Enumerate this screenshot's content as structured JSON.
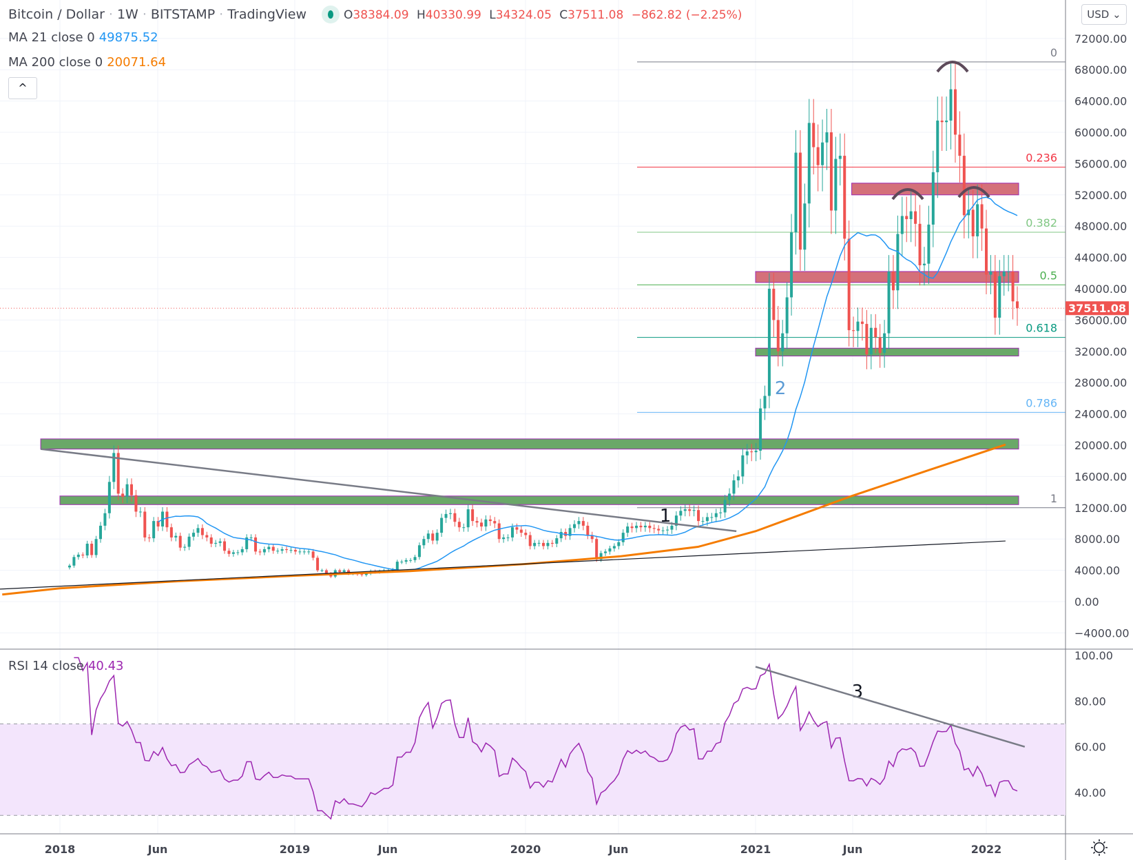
{
  "header": {
    "symbol": "Bitcoin / Dollar",
    "interval": "1W",
    "exchange": "BITSTAMP",
    "source": "TradingView",
    "sep": "·",
    "o_key": "O",
    "o": "38384.09",
    "h_key": "H",
    "h": "40330.99",
    "l_key": "L",
    "l": "34324.05",
    "c_key": "C",
    "c": "37511.08",
    "change": "−862.82 (−2.25%)"
  },
  "indicators": {
    "ma21_label": "MA 21 close 0",
    "ma21_value": "49875.52",
    "ma200_label": "MA 200 close 0",
    "ma200_value": "20071.64",
    "rsi_label": "RSI 14 close",
    "rsi_value": "40.43"
  },
  "controls": {
    "collapse": "^",
    "currency": "USD ⌄",
    "settings_icon": "sun-gear-icon"
  },
  "colors": {
    "up": "#26a69a",
    "down": "#ef5350",
    "ma21": "#2196f3",
    "ma200": "#f57c00",
    "rsi": "#9c27b0",
    "rsi_band": "#f3e5fc"
  },
  "chart_data": [
    {
      "type": "candlestick",
      "interval": "1W",
      "title": "Bitcoin / Dollar",
      "last_price": "37511.08",
      "ylim": [
        -4000,
        74000
      ],
      "y_ticks": [
        "72000.00",
        "68000.00",
        "64000.00",
        "60000.00",
        "56000.00",
        "52000.00",
        "48000.00",
        "44000.00",
        "40000.00",
        "36000.00",
        "32000.00",
        "28000.00",
        "24000.00",
        "20000.00",
        "16000.00",
        "12000.00",
        "8000.00",
        "4000.00",
        "0.00",
        "−4000.00"
      ],
      "x_ticks": [
        "2018",
        "Jun",
        "2019",
        "Jun",
        "2020",
        "Jun",
        "2021",
        "Jun",
        "2022"
      ],
      "weekly_close": [
        4600,
        5700,
        6000,
        5900,
        7400,
        5950,
        8000,
        9700,
        11300,
        15300,
        19000,
        13800,
        13400,
        15000,
        13600,
        11500,
        11500,
        8200,
        8100,
        10300,
        9600,
        11500,
        9500,
        8200,
        8400,
        6900,
        7000,
        8300,
        8800,
        9400,
        8500,
        8200,
        7400,
        7500,
        7700,
        6500,
        6100,
        6300,
        6300,
        6700,
        8200,
        8200,
        6400,
        6300,
        6700,
        7000,
        6500,
        6500,
        6700,
        6600,
        6600,
        6400,
        6400,
        6400,
        6400,
        5600,
        4000,
        4000,
        3600,
        3200,
        4000,
        3800,
        4000,
        3600,
        3600,
        3500,
        3400,
        3600,
        3900,
        3800,
        3900,
        4000,
        4000,
        4100,
        5100,
        5100,
        5300,
        5300,
        5700,
        7200,
        8000,
        8700,
        7800,
        8800,
        10700,
        11200,
        11300,
        10200,
        9500,
        9500,
        11800,
        10300,
        10100,
        9600,
        10500,
        10300,
        10000,
        8000,
        8200,
        8200,
        9500,
        9200,
        8800,
        8500,
        7100,
        7500,
        7500,
        7100,
        7500,
        7400,
        8100,
        8900,
        8400,
        9400,
        9900,
        10300,
        9700,
        8500,
        8000,
        5400,
        6200,
        6400,
        6800,
        7100,
        7600,
        8800,
        9600,
        9400,
        9700,
        9500,
        9700,
        9400,
        9300,
        9100,
        9100,
        9200,
        9700,
        11000,
        11600,
        11800,
        11600,
        11700,
        10300,
        10300,
        10800,
        10800,
        11300,
        11400,
        13000,
        13800,
        15500,
        16000,
        18700,
        19200,
        19100,
        19300,
        24700,
        26300,
        40000,
        36000,
        32000,
        34300,
        38900,
        47200,
        57400,
        45000,
        50900,
        61200,
        58100,
        55800,
        58700,
        60000,
        50000,
        56600,
        57000,
        46400,
        34700,
        34600,
        35800,
        35500,
        31600,
        35000,
        33800,
        31800,
        34300,
        42200,
        39800,
        47000,
        49300,
        48900,
        49900,
        48300,
        43000,
        43200,
        48200,
        54900,
        61500,
        61300,
        61500,
        65500,
        59700,
        57000,
        49400,
        50100,
        46700,
        50800,
        47700,
        41800,
        42200,
        36300,
        41600,
        42200,
        42200,
        38384,
        37511.08
      ],
      "ma200_approx": [
        [
          "2017-10",
          900
        ],
        [
          "2018-01",
          1700
        ],
        [
          "2018-07",
          2600
        ],
        [
          "2019-01",
          3300
        ],
        [
          "2019-07",
          3900
        ],
        [
          "2020-01",
          4800
        ],
        [
          "2020-06",
          5800
        ],
        [
          "2020-10",
          7000
        ],
        [
          "2021-01",
          9000
        ],
        [
          "2021-06",
          13500
        ],
        [
          "2021-10",
          16800
        ],
        [
          "2022-02",
          20071.64
        ]
      ],
      "fib_retracement": {
        "high": 69000,
        "low": 12000,
        "levels": [
          {
            "label": "0",
            "value": 0,
            "color": "#787b86"
          },
          {
            "label": "0.236",
            "value": 0.236,
            "color": "#f23645"
          },
          {
            "label": "0.382",
            "value": 0.382,
            "color": "#81c784"
          },
          {
            "label": "0.5",
            "value": 0.5,
            "color": "#4caf50"
          },
          {
            "label": "0.618",
            "value": 0.618,
            "color": "#089981"
          },
          {
            "label": "0.786",
            "value": 0.786,
            "color": "#64b5f6"
          },
          {
            "label": "1",
            "value": 1,
            "color": "#787b86"
          }
        ]
      },
      "zones": [
        {
          "kind": "resistance",
          "from": "2021-06",
          "to": "2022-02",
          "low": 52000,
          "high": 53500,
          "color": "#d4707a"
        },
        {
          "kind": "resistance",
          "from": "2021-01",
          "to": "2022-02",
          "low": 40800,
          "high": 42200,
          "color": "#d4707a"
        },
        {
          "kind": "support",
          "from": "2021-01",
          "to": "2022-02",
          "low": 31400,
          "high": 32400,
          "color": "#6aa868"
        },
        {
          "kind": "support",
          "from": "2017-12",
          "to": "2022-02",
          "low": 19500,
          "high": 20800,
          "color": "#6aa868"
        },
        {
          "kind": "support",
          "from": "2018-01",
          "to": "2022-02",
          "low": 12400,
          "high": 13500,
          "color": "#6aa868"
        }
      ],
      "trendlines": [
        {
          "from": [
            "2017-12",
            19500
          ],
          "to": [
            "2020-12",
            9000
          ],
          "color": "#787b86"
        },
        {
          "from": [
            "2017-09",
            1600
          ],
          "to": [
            "2022-02",
            7750
          ],
          "color": "#131722"
        }
      ],
      "annotations": [
        {
          "text": "1",
          "at": [
            "2020-08",
            10200
          ],
          "color": "#131722"
        },
        {
          "text": "2",
          "at": [
            "2021-02",
            26500
          ],
          "color": "#5b9bd5"
        },
        {
          "text": "3",
          "at": [
            "2021-06",
            null
          ],
          "color": "#131722",
          "pane": "rsi"
        }
      ]
    },
    {
      "type": "line",
      "title": "RSI 14 close",
      "ylim": [
        25,
        100
      ],
      "y_ticks": [
        "100.00",
        "80.00",
        "60.00",
        "40.00"
      ],
      "band": [
        30,
        70
      ],
      "trendline": {
        "from": [
          "2021-01",
          95
        ],
        "to": [
          "2022-03",
          60
        ]
      }
    }
  ]
}
